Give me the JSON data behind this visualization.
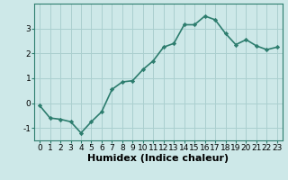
{
  "x": [
    0,
    1,
    2,
    3,
    4,
    5,
    6,
    7,
    8,
    9,
    10,
    11,
    12,
    13,
    14,
    15,
    16,
    17,
    18,
    19,
    20,
    21,
    22,
    23
  ],
  "y": [
    -0.1,
    -0.6,
    -0.65,
    -0.75,
    -1.2,
    -0.75,
    -0.35,
    0.55,
    0.85,
    0.9,
    1.35,
    1.7,
    2.25,
    2.4,
    3.15,
    3.15,
    3.5,
    3.35,
    2.8,
    2.35,
    2.55,
    2.3,
    2.15,
    2.25
  ],
  "line_color": "#2d7d6e",
  "marker": "D",
  "marker_size": 2.2,
  "bg_color": "#cde8e8",
  "grid_color": "#aacfcf",
  "xlabel": "Humidex (Indice chaleur)",
  "xlabel_fontsize": 8,
  "ylim": [
    -1.5,
    4.0
  ],
  "xlim": [
    -0.5,
    23.5
  ],
  "yticks": [
    -1,
    0,
    1,
    2,
    3
  ],
  "xticks": [
    0,
    1,
    2,
    3,
    4,
    5,
    6,
    7,
    8,
    9,
    10,
    11,
    12,
    13,
    14,
    15,
    16,
    17,
    18,
    19,
    20,
    21,
    22,
    23
  ],
  "tick_labelsize": 6.5,
  "linewidth": 1.2
}
